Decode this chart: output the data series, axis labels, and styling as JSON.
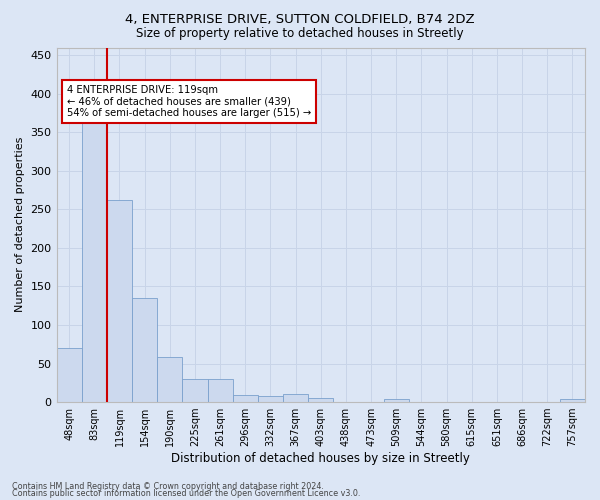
{
  "title_line1": "4, ENTERPRISE DRIVE, SUTTON COLDFIELD, B74 2DZ",
  "title_line2": "Size of property relative to detached houses in Streetly",
  "xlabel": "Distribution of detached houses by size in Streetly",
  "ylabel": "Number of detached properties",
  "bin_labels": [
    "48sqm",
    "83sqm",
    "119sqm",
    "154sqm",
    "190sqm",
    "225sqm",
    "261sqm",
    "296sqm",
    "332sqm",
    "367sqm",
    "403sqm",
    "438sqm",
    "473sqm",
    "509sqm",
    "544sqm",
    "580sqm",
    "615sqm",
    "651sqm",
    "686sqm",
    "722sqm",
    "757sqm"
  ],
  "bar_values": [
    70,
    378,
    262,
    135,
    58,
    30,
    30,
    9,
    8,
    10,
    5,
    0,
    0,
    4,
    0,
    0,
    0,
    0,
    0,
    0,
    4
  ],
  "bar_color": "#ccd9ee",
  "bar_edge_color": "#7aa0cc",
  "vline_color": "#cc0000",
  "annotation_text": "4 ENTERPRISE DRIVE: 119sqm\n← 46% of detached houses are smaller (439)\n54% of semi-detached houses are larger (515) →",
  "annotation_box_color": "#ffffff",
  "annotation_box_edge": "#cc0000",
  "ylim": [
    0,
    460
  ],
  "yticks": [
    0,
    50,
    100,
    150,
    200,
    250,
    300,
    350,
    400,
    450
  ],
  "grid_color": "#c8d4e8",
  "bg_color": "#dce6f5",
  "footer1": "Contains HM Land Registry data © Crown copyright and database right 2024.",
  "footer2": "Contains public sector information licensed under the Open Government Licence v3.0."
}
